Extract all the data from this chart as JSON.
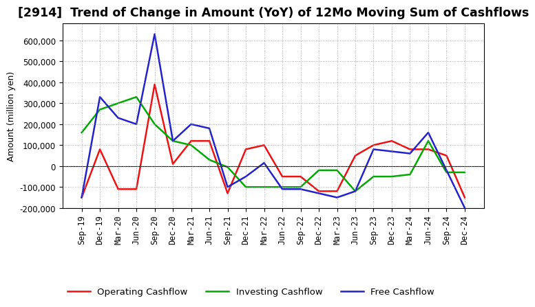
{
  "title": "[2914]  Trend of Change in Amount (YoY) of 12Mo Moving Sum of Cashflows",
  "ylabel": "Amount (million yen)",
  "background_color": "#ffffff",
  "plot_bg_color": "#ffffff",
  "grid_color": "#999999",
  "x_labels": [
    "Sep-19",
    "Dec-19",
    "Mar-20",
    "Jun-20",
    "Sep-20",
    "Dec-20",
    "Mar-21",
    "Jun-21",
    "Sep-21",
    "Dec-21",
    "Mar-22",
    "Jun-22",
    "Sep-22",
    "Dec-22",
    "Mar-23",
    "Jun-23",
    "Sep-23",
    "Dec-23",
    "Mar-24",
    "Jun-24",
    "Sep-24",
    "Dec-24"
  ],
  "operating": [
    -150000,
    80000,
    -110000,
    -110000,
    390000,
    10000,
    120000,
    120000,
    -130000,
    80000,
    100000,
    -50000,
    -50000,
    -120000,
    -120000,
    50000,
    100000,
    120000,
    80000,
    80000,
    50000,
    -150000
  ],
  "investing": [
    160000,
    270000,
    300000,
    330000,
    200000,
    120000,
    100000,
    30000,
    -5000,
    -100000,
    -100000,
    -100000,
    -100000,
    -20000,
    -20000,
    -120000,
    -50000,
    -50000,
    -40000,
    120000,
    -30000,
    -30000
  ],
  "free": [
    -150000,
    330000,
    230000,
    200000,
    630000,
    120000,
    200000,
    180000,
    -100000,
    -50000,
    15000,
    -110000,
    -110000,
    -130000,
    -150000,
    -120000,
    80000,
    70000,
    60000,
    160000,
    -20000,
    -200000
  ],
  "ylim": [
    -200000,
    680000
  ],
  "yticks": [
    -200000,
    -100000,
    0,
    100000,
    200000,
    300000,
    400000,
    500000,
    600000
  ],
  "operating_color": "#ee1111",
  "investing_color": "#00aa00",
  "free_color": "#2222cc",
  "linewidth": 1.8,
  "title_fontsize": 12.5,
  "axis_fontsize": 9,
  "tick_fontsize": 8.5,
  "legend_fontsize": 9.5
}
